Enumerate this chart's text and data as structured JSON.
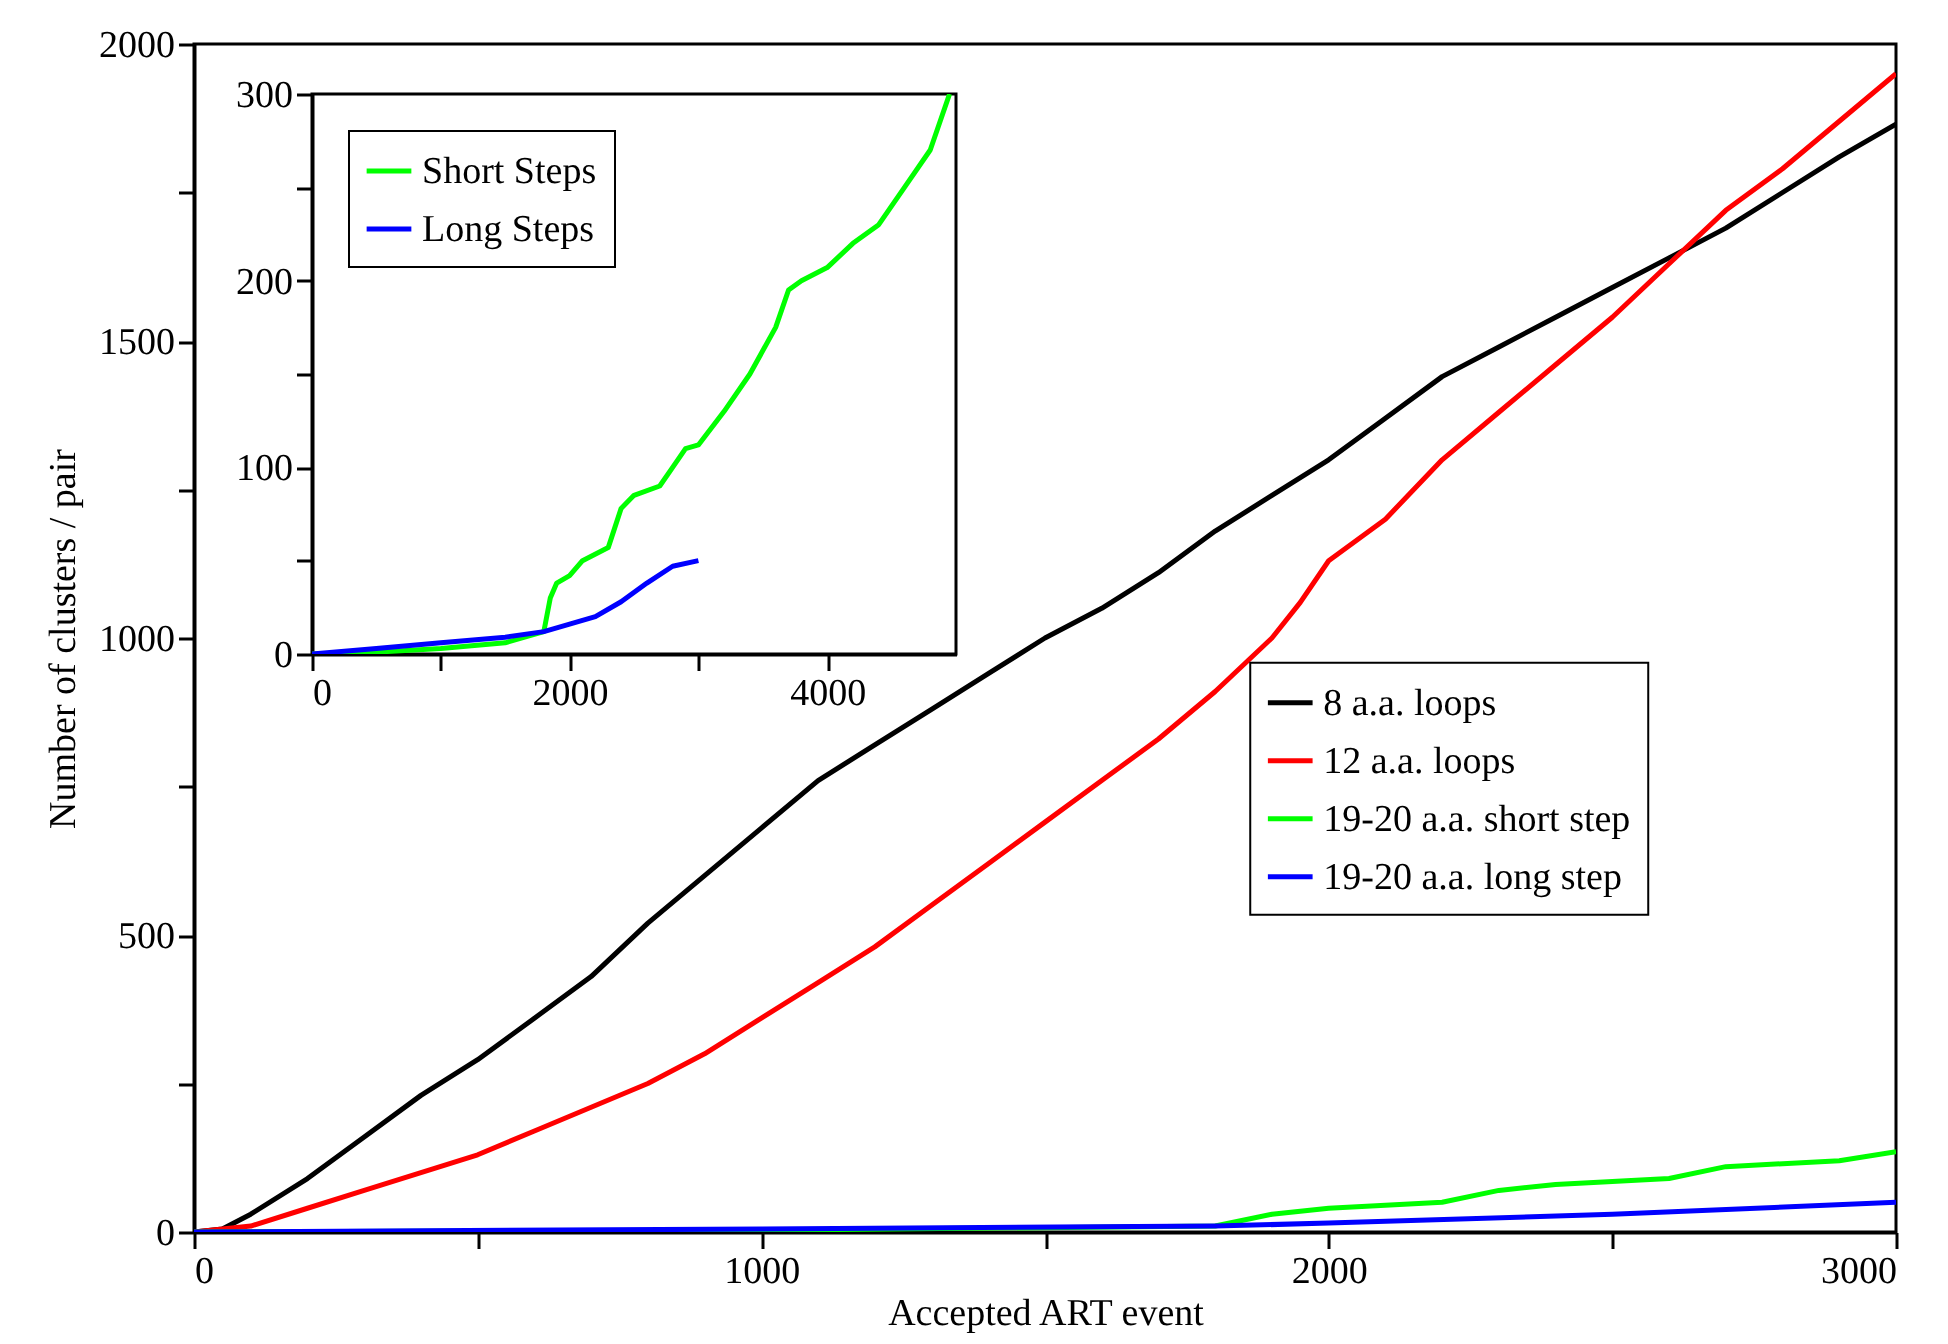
{
  "chart_data": [
    {
      "type": "line",
      "xlabel": "Accepted ART event",
      "ylabel": "Number of clusters / pair",
      "xlim": [
        0,
        3000
      ],
      "ylim": [
        0,
        2000
      ],
      "xticks": [
        0,
        {
          "value": 500,
          "label": null
        },
        1000,
        {
          "value": 1500,
          "label": null
        },
        2000,
        {
          "value": 2500,
          "label": null
        },
        3000
      ],
      "yticks": [
        0,
        {
          "value": 250,
          "label": null
        },
        500,
        {
          "value": 750,
          "label": null
        },
        1000,
        {
          "value": 1250,
          "label": null
        },
        1500,
        {
          "value": 1750,
          "label": null
        },
        2000
      ],
      "grid": false,
      "legend": "right",
      "line_style": "solid",
      "marker": "none",
      "series": [
        {
          "name": "8 a.a. loops",
          "color": "#000000",
          "x": [
            0,
            50,
            100,
            200,
            300,
            400,
            500,
            600,
            700,
            800,
            900,
            1000,
            1100,
            1200,
            1300,
            1400,
            1500,
            1600,
            1700,
            1800,
            1900,
            2000,
            2100,
            2200,
            2300,
            2400,
            2500,
            2600,
            2700,
            2800,
            2900,
            3000
          ],
          "values": [
            0,
            5,
            30,
            90,
            160,
            230,
            290,
            360,
            430,
            520,
            600,
            680,
            760,
            820,
            880,
            940,
            1000,
            1050,
            1110,
            1180,
            1240,
            1300,
            1370,
            1440,
            1490,
            1540,
            1590,
            1640,
            1690,
            1750,
            1810,
            1865
          ]
        },
        {
          "name": "12 a.a. loops",
          "color": "#ff0000",
          "x": [
            0,
            100,
            200,
            300,
            400,
            500,
            600,
            700,
            800,
            900,
            1000,
            1100,
            1200,
            1300,
            1400,
            1500,
            1600,
            1700,
            1800,
            1900,
            1950,
            2000,
            2100,
            2200,
            2300,
            2400,
            2500,
            2600,
            2700,
            2800,
            2900,
            3000
          ],
          "values": [
            0,
            10,
            40,
            70,
            100,
            130,
            170,
            210,
            250,
            300,
            360,
            420,
            480,
            550,
            620,
            690,
            760,
            830,
            910,
            1000,
            1060,
            1130,
            1200,
            1300,
            1380,
            1460,
            1540,
            1630,
            1720,
            1790,
            1870,
            1950
          ]
        },
        {
          "name": "19-20 a.a. short step",
          "color": "#00ff00",
          "x": [
            0,
            1000,
            1800,
            1900,
            2000,
            2200,
            2300,
            2400,
            2600,
            2700,
            2900,
            3000
          ],
          "values": [
            0,
            3,
            10,
            30,
            40,
            50,
            70,
            80,
            90,
            110,
            120,
            135
          ]
        },
        {
          "name": "19-20 a.a. long step",
          "color": "#0000ff",
          "x": [
            0,
            1000,
            1800,
            2000,
            2500,
            3000
          ],
          "values": [
            0,
            5,
            10,
            15,
            30,
            50
          ]
        }
      ]
    },
    {
      "type": "line",
      "xlim": [
        0,
        5000
      ],
      "ylim": [
        0,
        300
      ],
      "xticks": [
        0,
        {
          "value": 1000,
          "label": null
        },
        2000,
        {
          "value": 3000,
          "label": null
        },
        4000
      ],
      "yticks": [
        0,
        {
          "value": 50,
          "label": null
        },
        100,
        {
          "value": 150,
          "label": null
        },
        200,
        {
          "value": 250,
          "label": null
        },
        300
      ],
      "grid": false,
      "legend": "top left",
      "line_style": "solid",
      "marker": "none",
      "series": [
        {
          "name": "Short Steps",
          "color": "#00ff00",
          "x": [
            0,
            500,
            1000,
            1500,
            1800,
            1850,
            1900,
            2000,
            2100,
            2300,
            2400,
            2500,
            2700,
            2800,
            2900,
            3000,
            3200,
            3400,
            3600,
            3700,
            3800,
            4000,
            4200,
            4400,
            4600,
            4800,
            4950
          ],
          "values": [
            0,
            1,
            3,
            6,
            12,
            30,
            38,
            42,
            50,
            57,
            78,
            85,
            90,
            100,
            110,
            112,
            130,
            150,
            175,
            195,
            200,
            207,
            220,
            230,
            250,
            270,
            300
          ]
        },
        {
          "name": "Long Steps",
          "color": "#0000ff",
          "x": [
            0,
            500,
            1000,
            1500,
            1800,
            2000,
            2200,
            2400,
            2600,
            2800,
            3000
          ],
          "values": [
            0,
            3,
            6,
            9,
            12,
            16,
            20,
            28,
            38,
            47,
            50
          ]
        }
      ]
    }
  ]
}
